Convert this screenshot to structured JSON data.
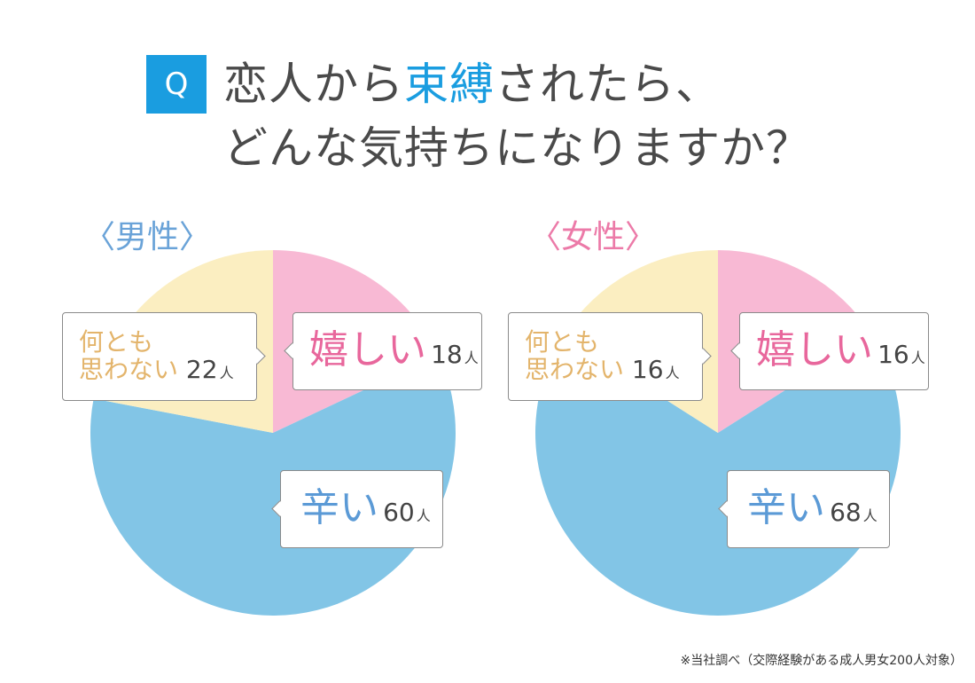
{
  "header": {
    "badge": "Q",
    "title_pre": "恋人から",
    "title_accent": "束縛",
    "title_post": "されたら、",
    "title_line2": "どんな気持ちになりますか？"
  },
  "colors": {
    "accent": "#1a9de0",
    "happy": "#f8b9d4",
    "hard": "#82c5e6",
    "none": "#fbeec1"
  },
  "chart_data": [
    {
      "type": "pie",
      "title": "〈男性〉",
      "categories": [
        "嬉しい",
        "辛い",
        "何とも思わない"
      ],
      "values": [
        18,
        60,
        22
      ],
      "unit": "人"
    },
    {
      "type": "pie",
      "title": "〈女性〉",
      "categories": [
        "嬉しい",
        "辛い",
        "何とも思わない"
      ],
      "values": [
        16,
        68,
        16
      ],
      "unit": "人"
    }
  ],
  "labels": {
    "happy": "嬉しい",
    "hard": "辛い",
    "none_line1": "何とも",
    "none_line2": "思わない",
    "unit": "人"
  },
  "footnote": "※当社調べ（交際経験がある成人男女200人対象）"
}
